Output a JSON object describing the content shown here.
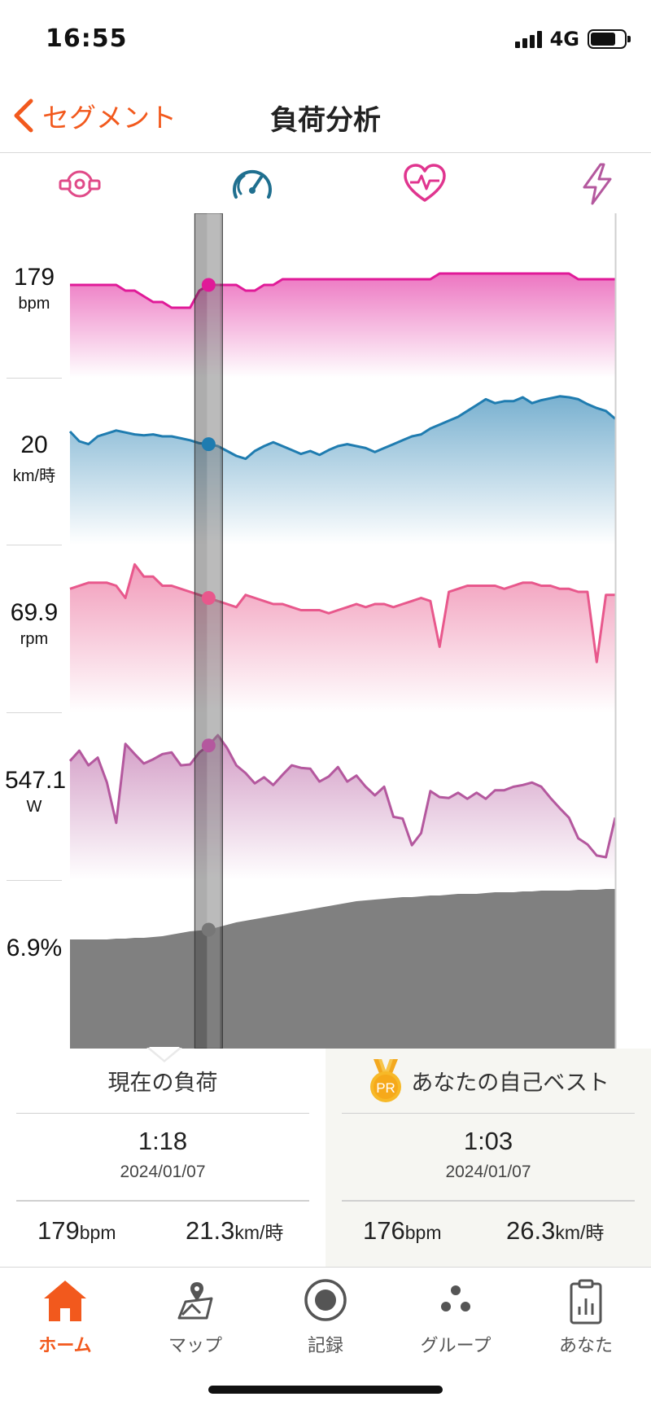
{
  "status_bar": {
    "time": "16:55",
    "network": "4G",
    "battery_level": 0.75
  },
  "header": {
    "back_label": "セグメント",
    "title": "負荷分析"
  },
  "metric_icons": [
    "cadence-icon",
    "speedometer-icon",
    "heart-rate-icon",
    "power-icon"
  ],
  "chart": {
    "axes": [
      {
        "value": "179",
        "unit": "bpm"
      },
      {
        "value": "20",
        "unit": "km/時"
      },
      {
        "value": "69.9",
        "unit": "rpm"
      },
      {
        "value": "547.1",
        "unit": "W"
      },
      {
        "value": "6.9%",
        "unit": ""
      }
    ],
    "colors": {
      "heart_rate": "#e01a98",
      "speed": "#1f7cb0",
      "cadence": "#e8588c",
      "power": "#b4589e",
      "grade": "#808080"
    }
  },
  "chart_data": {
    "type": "area",
    "x": [
      0,
      1,
      2,
      3,
      4,
      5,
      6,
      7,
      8,
      9,
      10,
      11,
      12,
      13,
      14,
      15,
      16,
      17,
      18,
      19,
      20,
      21,
      22,
      23,
      24,
      25,
      26,
      27,
      28,
      29,
      30,
      31,
      32,
      33,
      34,
      35,
      36,
      37,
      38,
      39,
      40,
      41,
      42,
      43,
      44,
      45,
      46,
      47,
      48,
      49,
      50,
      51,
      52,
      53,
      54,
      55,
      56,
      57,
      58,
      59
    ],
    "cursor_index": 15,
    "series": [
      {
        "name": "bpm",
        "values": [
          176,
          176,
          176,
          176,
          176,
          176,
          175,
          175,
          174,
          173,
          173,
          172,
          172,
          172,
          175,
          176,
          176,
          176,
          176,
          175,
          175,
          176,
          176,
          177,
          177,
          177,
          177,
          177,
          177,
          177,
          177,
          177,
          177,
          177,
          177,
          177,
          177,
          177,
          177,
          177,
          178,
          178,
          178,
          178,
          178,
          178,
          178,
          178,
          178,
          178,
          178,
          178,
          178,
          178,
          178,
          177,
          177,
          177,
          177,
          177
        ]
      },
      {
        "name": "km/時",
        "values": [
          21.5,
          20.5,
          20.2,
          21,
          21.3,
          21.6,
          21.4,
          21.2,
          21.1,
          21.2,
          21,
          21,
          20.8,
          20.6,
          20.3,
          20.2,
          20,
          19.5,
          19,
          18.7,
          19.5,
          20,
          20.4,
          20,
          19.6,
          19.2,
          19.5,
          19.1,
          19.6,
          20,
          20.2,
          20,
          19.8,
          19.4,
          19.8,
          20.2,
          20.6,
          21,
          21.2,
          21.8,
          22.2,
          22.6,
          23,
          23.6,
          24.2,
          24.8,
          24.4,
          24.6,
          24.6,
          25,
          24.4,
          24.7,
          24.9,
          25.1,
          25,
          24.8,
          24.3,
          23.9,
          23.6,
          22.8
        ]
      },
      {
        "name": "rpm",
        "values": [
          79,
          80,
          81,
          81,
          81,
          80,
          76,
          87,
          83,
          83,
          80,
          80,
          79,
          78,
          77,
          76,
          75,
          74,
          73,
          77,
          76,
          75,
          74,
          74,
          73,
          72,
          72,
          72,
          71,
          72,
          73,
          74,
          73,
          74,
          74,
          73,
          74,
          75,
          76,
          75,
          60,
          78,
          79,
          80,
          80,
          80,
          80,
          79,
          80,
          81,
          81,
          80,
          80,
          79,
          79,
          78,
          78,
          55,
          77,
          77
        ]
      },
      {
        "name": "W",
        "values": [
          530,
          542,
          525,
          534,
          505,
          458,
          550,
          538,
          527,
          532,
          538,
          540,
          525,
          526,
          540,
          548,
          560,
          545,
          525,
          516,
          504,
          511,
          502,
          514,
          525,
          522,
          521,
          506,
          512,
          523,
          506,
          513,
          500,
          490,
          500,
          465,
          463,
          432,
          446,
          495,
          488,
          487,
          493,
          486,
          493,
          486,
          496,
          496,
          500,
          502,
          505,
          500,
          487,
          475,
          464,
          440,
          433,
          420,
          418,
          464
        ]
      },
      {
        "name": "grade_pct",
        "values": [
          6.9,
          6.9,
          6.9,
          6.9,
          6.9,
          6.95,
          6.95,
          7,
          7,
          7.05,
          7.1,
          7.2,
          7.3,
          7.4,
          7.45,
          7.5,
          7.65,
          7.8,
          7.95,
          8.05,
          8.15,
          8.25,
          8.35,
          8.45,
          8.55,
          8.65,
          8.75,
          8.85,
          8.95,
          9.05,
          9.15,
          9.25,
          9.3,
          9.35,
          9.4,
          9.45,
          9.5,
          9.5,
          9.55,
          9.6,
          9.6,
          9.65,
          9.7,
          9.7,
          9.7,
          9.75,
          9.8,
          9.8,
          9.8,
          9.85,
          9.85,
          9.9,
          9.9,
          9.9,
          9.9,
          9.95,
          9.95,
          9.95,
          10,
          10
        ]
      }
    ],
    "grid": false
  },
  "compare": {
    "current": {
      "title": "現在の負荷",
      "time": "1:18",
      "date": "2024/01/07",
      "bpm": "179",
      "bpm_unit": "bpm",
      "speed": "21.3",
      "speed_unit": "km/時"
    },
    "best": {
      "title": "あなたの自己ベスト",
      "badge": "PR",
      "time": "1:03",
      "date": "2024/01/07",
      "bpm": "176",
      "bpm_unit": "bpm",
      "speed": "26.3",
      "speed_unit": "km/時"
    }
  },
  "tabs": [
    {
      "label": "ホーム",
      "icon": "home-icon",
      "active": true
    },
    {
      "label": "マップ",
      "icon": "map-icon",
      "active": false
    },
    {
      "label": "記録",
      "icon": "record-icon",
      "active": false
    },
    {
      "label": "グループ",
      "icon": "group-icon",
      "active": false
    },
    {
      "label": "あなた",
      "icon": "profile-icon",
      "active": false
    }
  ]
}
